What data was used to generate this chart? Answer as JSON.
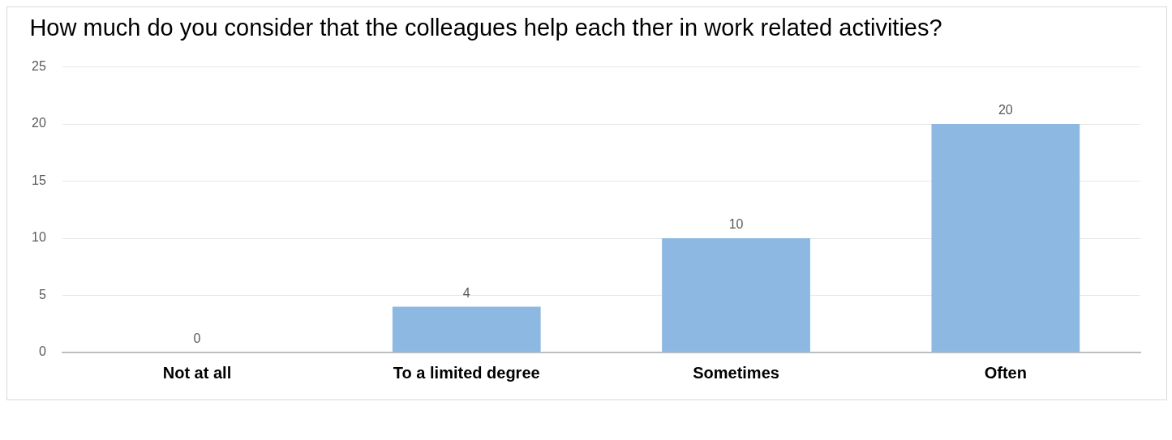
{
  "chart_data": {
    "type": "bar",
    "title": "How much do you consider that the colleagues help each ther in work related activities?",
    "categories": [
      "Not at all",
      "To a limited degree",
      "Sometimes",
      "Often"
    ],
    "values": [
      0,
      4,
      10,
      20
    ],
    "color": "#8db8e2",
    "ylim": [
      0,
      25
    ],
    "yticks": [
      0,
      5,
      10,
      15,
      20,
      25
    ],
    "grid": "y",
    "data_labels": true,
    "legend": false
  }
}
